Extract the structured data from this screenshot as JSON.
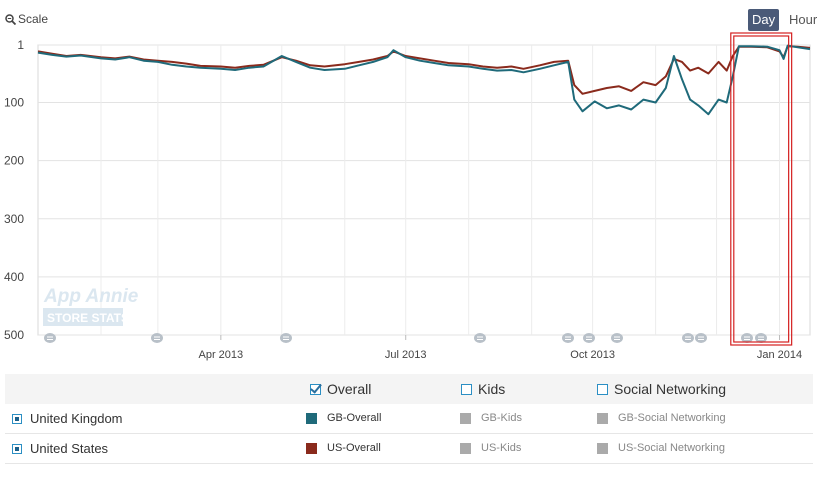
{
  "toolbar": {
    "scale_label": "Scale",
    "day_label": "Day",
    "hour_label": "Hour"
  },
  "chart_data": {
    "type": "line",
    "y_axis": {
      "reversed": true,
      "min": 1,
      "max": 500,
      "ticks": [
        1,
        100,
        200,
        300,
        400,
        500
      ]
    },
    "x_axis": {
      "type": "date",
      "min": "2013-01-01",
      "max": "2014-01-16",
      "tick_labels": [
        "Apr 2013",
        "Jul 2013",
        "Oct 2013",
        "Jan 2014"
      ],
      "tick_dates": [
        "2013-04-01",
        "2013-07-01",
        "2013-10-01",
        "2014-01-01"
      ]
    },
    "grid": true,
    "watermark": {
      "line1": "App Annie",
      "line2": "STORE STATS"
    },
    "highlight_range": [
      "2013-12-09",
      "2014-01-05"
    ],
    "series": [
      {
        "name": "GB-Overall",
        "color": "#1f6a7a",
        "points": [
          [
            "2013-01-01",
            14
          ],
          [
            "2013-01-08",
            18
          ],
          [
            "2013-01-15",
            21
          ],
          [
            "2013-01-22",
            19
          ],
          [
            "2013-02-01",
            24
          ],
          [
            "2013-02-08",
            26
          ],
          [
            "2013-02-15",
            22
          ],
          [
            "2013-02-22",
            28
          ],
          [
            "2013-03-01",
            30
          ],
          [
            "2013-03-08",
            35
          ],
          [
            "2013-03-15",
            38
          ],
          [
            "2013-03-22",
            40
          ],
          [
            "2013-04-01",
            42
          ],
          [
            "2013-04-08",
            44
          ],
          [
            "2013-04-15",
            40
          ],
          [
            "2013-04-22",
            38
          ],
          [
            "2013-05-01",
            20
          ],
          [
            "2013-05-08",
            30
          ],
          [
            "2013-05-15",
            40
          ],
          [
            "2013-05-22",
            44
          ],
          [
            "2013-06-01",
            42
          ],
          [
            "2013-06-08",
            36
          ],
          [
            "2013-06-15",
            30
          ],
          [
            "2013-06-22",
            22
          ],
          [
            "2013-06-25",
            10
          ],
          [
            "2013-07-01",
            22
          ],
          [
            "2013-07-08",
            28
          ],
          [
            "2013-07-15",
            32
          ],
          [
            "2013-07-22",
            36
          ],
          [
            "2013-08-01",
            38
          ],
          [
            "2013-08-08",
            42
          ],
          [
            "2013-08-15",
            45
          ],
          [
            "2013-08-22",
            44
          ],
          [
            "2013-08-28",
            48
          ],
          [
            "2013-09-05",
            42
          ],
          [
            "2013-09-12",
            36
          ],
          [
            "2013-09-19",
            30
          ],
          [
            "2013-09-22",
            95
          ],
          [
            "2013-09-26",
            115
          ],
          [
            "2013-10-02",
            98
          ],
          [
            "2013-10-08",
            110
          ],
          [
            "2013-10-14",
            105
          ],
          [
            "2013-10-20",
            112
          ],
          [
            "2013-10-26",
            95
          ],
          [
            "2013-11-01",
            100
          ],
          [
            "2013-11-06",
            75
          ],
          [
            "2013-11-10",
            20
          ],
          [
            "2013-11-14",
            60
          ],
          [
            "2013-11-18",
            95
          ],
          [
            "2013-11-22",
            105
          ],
          [
            "2013-11-27",
            120
          ],
          [
            "2013-12-02",
            95
          ],
          [
            "2013-12-06",
            100
          ],
          [
            "2013-12-09",
            55
          ],
          [
            "2013-12-12",
            3
          ],
          [
            "2013-12-18",
            3
          ],
          [
            "2013-12-26",
            4
          ],
          [
            "2014-01-01",
            10
          ],
          [
            "2014-01-03",
            25
          ],
          [
            "2014-01-05",
            2
          ],
          [
            "2014-01-10",
            5
          ],
          [
            "2014-01-16",
            8
          ]
        ]
      },
      {
        "name": "US-Overall",
        "color": "#8a2a1c",
        "points": [
          [
            "2013-01-01",
            12
          ],
          [
            "2013-01-08",
            16
          ],
          [
            "2013-01-15",
            20
          ],
          [
            "2013-01-22",
            18
          ],
          [
            "2013-02-01",
            22
          ],
          [
            "2013-02-08",
            24
          ],
          [
            "2013-02-15",
            21
          ],
          [
            "2013-02-22",
            26
          ],
          [
            "2013-03-01",
            28
          ],
          [
            "2013-03-08",
            30
          ],
          [
            "2013-03-15",
            33
          ],
          [
            "2013-03-22",
            37
          ],
          [
            "2013-04-01",
            38
          ],
          [
            "2013-04-08",
            40
          ],
          [
            "2013-04-15",
            37
          ],
          [
            "2013-04-22",
            35
          ],
          [
            "2013-05-01",
            22
          ],
          [
            "2013-05-08",
            28
          ],
          [
            "2013-05-15",
            36
          ],
          [
            "2013-05-22",
            38
          ],
          [
            "2013-06-01",
            34
          ],
          [
            "2013-06-08",
            30
          ],
          [
            "2013-06-15",
            26
          ],
          [
            "2013-06-22",
            20
          ],
          [
            "2013-06-25",
            12
          ],
          [
            "2013-07-01",
            20
          ],
          [
            "2013-07-08",
            24
          ],
          [
            "2013-07-15",
            28
          ],
          [
            "2013-07-22",
            32
          ],
          [
            "2013-08-01",
            34
          ],
          [
            "2013-08-08",
            38
          ],
          [
            "2013-08-15",
            40
          ],
          [
            "2013-08-22",
            38
          ],
          [
            "2013-08-28",
            42
          ],
          [
            "2013-09-05",
            36
          ],
          [
            "2013-09-12",
            30
          ],
          [
            "2013-09-19",
            28
          ],
          [
            "2013-09-22",
            70
          ],
          [
            "2013-09-26",
            85
          ],
          [
            "2013-10-02",
            80
          ],
          [
            "2013-10-08",
            75
          ],
          [
            "2013-10-14",
            72
          ],
          [
            "2013-10-20",
            80
          ],
          [
            "2013-10-26",
            65
          ],
          [
            "2013-11-01",
            70
          ],
          [
            "2013-11-06",
            55
          ],
          [
            "2013-11-10",
            25
          ],
          [
            "2013-11-14",
            30
          ],
          [
            "2013-11-18",
            45
          ],
          [
            "2013-11-22",
            40
          ],
          [
            "2013-11-27",
            50
          ],
          [
            "2013-12-02",
            30
          ],
          [
            "2013-12-06",
            45
          ],
          [
            "2013-12-09",
            20
          ],
          [
            "2013-12-12",
            4
          ],
          [
            "2013-12-18",
            4
          ],
          [
            "2013-12-26",
            5
          ],
          [
            "2014-01-01",
            12
          ],
          [
            "2014-01-03",
            22
          ],
          [
            "2014-01-05",
            3
          ],
          [
            "2014-01-10",
            4
          ],
          [
            "2014-01-16",
            6
          ]
        ]
      }
    ]
  },
  "legend": {
    "categories": [
      {
        "label": "Overall",
        "checked": true
      },
      {
        "label": "Kids",
        "checked": false
      },
      {
        "label": "Social Networking",
        "checked": false
      }
    ],
    "countries": [
      {
        "name": "United Kingdom",
        "series": [
          "GB-Overall",
          "GB-Kids",
          "GB-Social Networking"
        ],
        "colors": [
          "#1f6a7a",
          "#aaaaaa",
          "#aaaaaa"
        ]
      },
      {
        "name": "United States",
        "series": [
          "US-Overall",
          "US-Kids",
          "US-Social Networking"
        ],
        "colors": [
          "#8a2a1c",
          "#aaaaaa",
          "#aaaaaa"
        ]
      }
    ]
  }
}
